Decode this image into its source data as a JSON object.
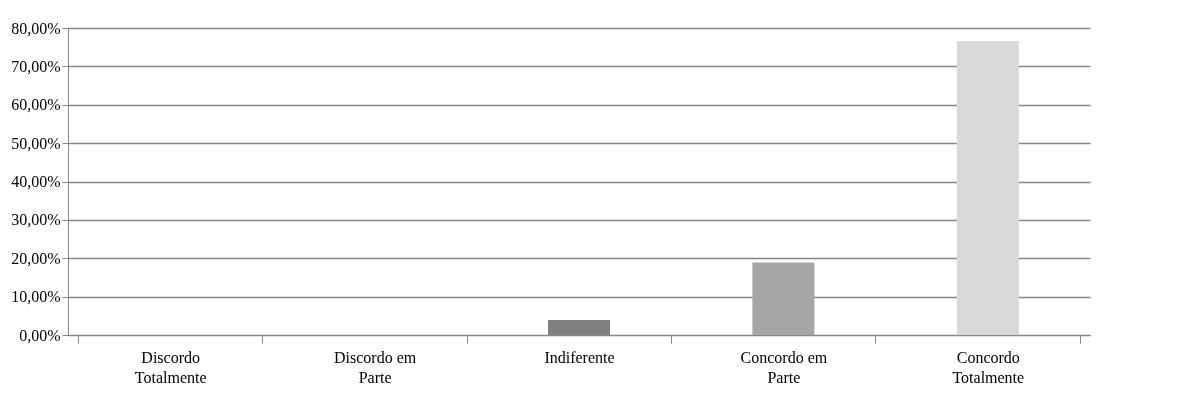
{
  "chart_data": {
    "type": "bar",
    "categories": [
      "Discordo Totalmente",
      "Discordo em Parte",
      "Indiferente",
      "Concordo em Parte",
      "Concordo Totalmente"
    ],
    "values": [
      0,
      0,
      3.9,
      18.9,
      76.6
    ],
    "colors": [
      "#4d4d4d",
      "#5f5f5f",
      "#7f7f7f",
      "#a6a6a6",
      "#d9d9d9"
    ],
    "ylim": [
      0,
      80
    ],
    "yticks": [
      {
        "value": 0,
        "label": "0,00%"
      },
      {
        "value": 10,
        "label": "10,00%"
      },
      {
        "value": 20,
        "label": "20,00%"
      },
      {
        "value": 30,
        "label": "30,00%"
      },
      {
        "value": 40,
        "label": "40,00%"
      },
      {
        "value": 50,
        "label": "50,00%"
      },
      {
        "value": 60,
        "label": "60,00%"
      },
      {
        "value": 70,
        "label": "70,00%"
      },
      {
        "value": 80,
        "label": "80,00%"
      }
    ],
    "grid": "y"
  }
}
